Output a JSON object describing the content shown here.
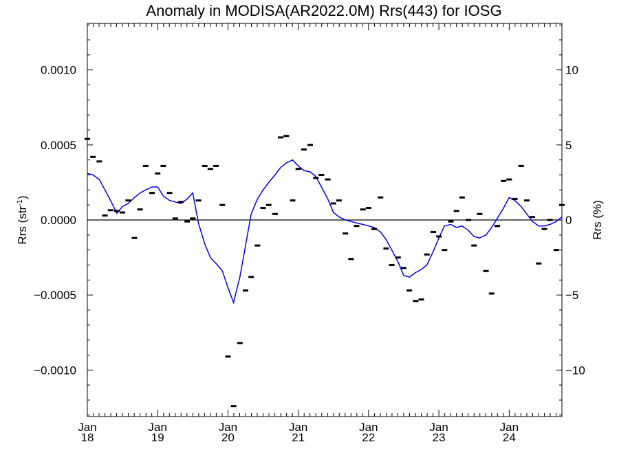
{
  "chart_data": {
    "type": "line",
    "title": "Anomaly in MODISA(AR2022.0M) Rrs(443) for IOSG",
    "ylabel_left_main": "Rrs (str",
    "ylabel_left_sup": "-1",
    "ylabel_left_close": ")",
    "ylabel_right": "Rrs (%)",
    "xlim": [
      2018.0,
      2024.75
    ],
    "ylim": [
      -0.00131,
      0.00131
    ],
    "ylim_right": [
      -13.1,
      13.1
    ],
    "grid": false,
    "zero_line": true,
    "colors": {
      "smoothed": "#0000ee",
      "points": "#000000",
      "zero": "#000000"
    },
    "x_ticks": [
      {
        "value": 2018,
        "line1": "Jan",
        "line2": "18"
      },
      {
        "value": 2019,
        "line1": "Jan",
        "line2": "19"
      },
      {
        "value": 2020,
        "line1": "Jan",
        "line2": "20"
      },
      {
        "value": 2021,
        "line1": "Jan",
        "line2": "21"
      },
      {
        "value": 2022,
        "line1": "Jan",
        "line2": "22"
      },
      {
        "value": 2023,
        "line1": "Jan",
        "line2": "23"
      },
      {
        "value": 2024,
        "line1": "Jan",
        "line2": "24"
      }
    ],
    "y_ticks_left": [
      {
        "value": 0.001,
        "label": "0.0010"
      },
      {
        "value": 0.0005,
        "label": "0.0005"
      },
      {
        "value": 0.0,
        "label": "0.0000"
      },
      {
        "value": -0.0005,
        "label": "−0.0005"
      },
      {
        "value": -0.001,
        "label": "−0.0010"
      }
    ],
    "y_ticks_right": [
      {
        "value": 10,
        "label": "10"
      },
      {
        "value": 5,
        "label": "5"
      },
      {
        "value": 0,
        "label": "0"
      },
      {
        "value": -5,
        "label": "−5"
      },
      {
        "value": -10,
        "label": "−10"
      }
    ],
    "series": [
      {
        "kind": "monthly_points",
        "x": [
          2018.0,
          2018.08,
          2018.17,
          2018.25,
          2018.33,
          2018.42,
          2018.5,
          2018.58,
          2018.67,
          2018.75,
          2018.83,
          2018.92,
          2019.0,
          2019.08,
          2019.17,
          2019.25,
          2019.33,
          2019.42,
          2019.5,
          2019.58,
          2019.67,
          2019.75,
          2019.83,
          2019.92,
          2020.0,
          2020.08,
          2020.17,
          2020.25,
          2020.33,
          2020.42,
          2020.5,
          2020.58,
          2020.67,
          2020.75,
          2020.83,
          2020.92,
          2021.0,
          2021.08,
          2021.17,
          2021.25,
          2021.33,
          2021.42,
          2021.5,
          2021.58,
          2021.67,
          2021.75,
          2021.83,
          2021.92,
          2022.0,
          2022.08,
          2022.17,
          2022.25,
          2022.33,
          2022.42,
          2022.5,
          2022.58,
          2022.67,
          2022.75,
          2022.83,
          2022.92,
          2023.0,
          2023.08,
          2023.17,
          2023.25,
          2023.33,
          2023.42,
          2023.5,
          2023.58,
          2023.67,
          2023.75,
          2023.83,
          2023.92,
          2024.0,
          2024.08,
          2024.17,
          2024.25,
          2024.33,
          2024.42,
          2024.5,
          2024.58,
          2024.67,
          2024.75
        ],
        "y": [
          0.00054,
          0.00042,
          0.00039,
          3e-05,
          6.5e-05,
          6e-05,
          5e-05,
          0.00013,
          -0.00012,
          7e-05,
          0.00036,
          0.00018,
          0.00031,
          0.00036,
          0.00018,
          1e-05,
          0.00012,
          -1e-05,
          1e-05,
          0.00013,
          0.00036,
          0.00034,
          0.00036,
          0.0001,
          -0.00091,
          -0.00124,
          -0.00082,
          -0.00047,
          -0.00038,
          -0.00017,
          8e-05,
          0.0001,
          4e-05,
          0.00055,
          0.00056,
          0.00013,
          0.00034,
          0.00047,
          0.0005,
          0.00028,
          0.0003,
          0.00027,
          0.00011,
          0.00013,
          -9e-05,
          -0.00026,
          -4e-05,
          7e-05,
          8e-05,
          -6e-05,
          0.00015,
          -0.00019,
          -0.0003,
          -0.00025,
          -0.00032,
          -0.00047,
          -0.00054,
          -0.00053,
          -0.00023,
          -8e-05,
          -0.00011,
          -0.0002,
          -1e-05,
          6e-05,
          0.00015,
          0.0,
          -0.00017,
          4e-05,
          -0.00034,
          -0.00049,
          -4e-05,
          0.00026,
          0.00027,
          0.00014,
          0.00036,
          0.00013,
          2e-05,
          -0.00029,
          -6e-05,
          0.0,
          -0.0002,
          0.0001
        ]
      },
      {
        "kind": "smoothed",
        "x": [
          2018.0,
          2018.08,
          2018.17,
          2018.25,
          2018.33,
          2018.42,
          2018.5,
          2018.58,
          2018.67,
          2018.75,
          2018.83,
          2018.92,
          2019.0,
          2019.08,
          2019.17,
          2019.25,
          2019.33,
          2019.42,
          2019.5,
          2019.58,
          2019.67,
          2019.75,
          2019.83,
          2019.92,
          2020.0,
          2020.08,
          2020.17,
          2020.25,
          2020.33,
          2020.42,
          2020.5,
          2020.58,
          2020.67,
          2020.75,
          2020.83,
          2020.92,
          2021.0,
          2021.08,
          2021.17,
          2021.25,
          2021.33,
          2021.42,
          2021.5,
          2021.58,
          2021.67,
          2021.75,
          2021.83,
          2021.92,
          2022.0,
          2022.08,
          2022.17,
          2022.25,
          2022.33,
          2022.42,
          2022.5,
          2022.58,
          2022.67,
          2022.75,
          2022.83,
          2022.92,
          2023.0,
          2023.08,
          2023.17,
          2023.25,
          2023.33,
          2023.42,
          2023.5,
          2023.58,
          2023.67,
          2023.75,
          2023.83,
          2023.92,
          2024.0,
          2024.08,
          2024.17,
          2024.25,
          2024.33,
          2024.42,
          2024.5,
          2024.58,
          2024.67,
          2024.75
        ],
        "y": [
          0.00031,
          0.0003,
          0.00027,
          0.0002,
          0.00013,
          4.5e-05,
          9e-05,
          0.00011,
          0.00015,
          0.00018,
          0.0002,
          0.00022,
          0.00022,
          0.00016,
          0.00013,
          0.00012,
          0.00011,
          0.00014,
          0.00018,
          -2e-05,
          -0.00016,
          -0.00025,
          -0.00029,
          -0.00034,
          -0.00045,
          -0.00055,
          -0.00038,
          -0.00017,
          4e-05,
          0.00014,
          0.0002,
          0.00025,
          0.0003,
          0.00035,
          0.00038,
          0.0004,
          0.00036,
          0.00033,
          0.00032,
          0.00029,
          0.00022,
          0.00014,
          5e-05,
          2e-05,
          0.0,
          -1e-05,
          -2e-05,
          -3e-05,
          -4e-05,
          -5e-05,
          -8e-05,
          -0.00013,
          -0.0002,
          -0.00028,
          -0.00037,
          -0.00038,
          -0.00035,
          -0.00033,
          -0.0003,
          -0.00021,
          -0.00012,
          -4e-05,
          -3e-05,
          -5e-05,
          -4e-05,
          -7e-05,
          -0.00011,
          -0.00012,
          -0.0001,
          -5e-05,
          1e-05,
          8e-05,
          0.00015,
          0.00013,
          9e-05,
          4e-05,
          -1e-05,
          -4e-05,
          -4e-05,
          -3e-05,
          -1e-05,
          2e-05
        ]
      }
    ]
  }
}
